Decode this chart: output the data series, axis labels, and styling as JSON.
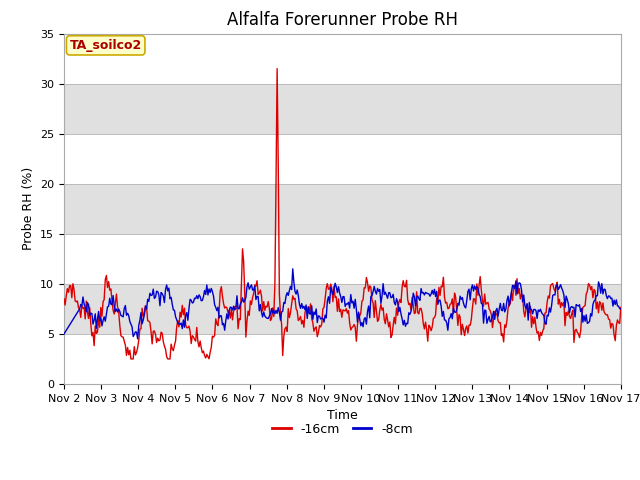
{
  "title": "Alfalfa Forerunner Probe RH",
  "ylabel": "Probe RH (%)",
  "xlabel": "Time",
  "ylim": [
    0,
    35
  ],
  "yticks": [
    0,
    5,
    10,
    15,
    20,
    25,
    30,
    35
  ],
  "xtick_labels": [
    "Nov 2",
    "Nov 3",
    "Nov 4",
    "Nov 5",
    "Nov 6",
    "Nov 7",
    "Nov 8",
    "Nov 9",
    "Nov 10",
    "Nov 11",
    "Nov 12",
    "Nov 13",
    "Nov 14",
    "Nov 15",
    "Nov 16",
    "Nov 17"
  ],
  "annotation_text": "TA_soilco2",
  "annotation_bg": "#ffffcc",
  "annotation_edge": "#ccaa00",
  "annotation_textcolor": "#aa0000",
  "line_red_color": "#dd0000",
  "line_blue_color": "#0000cc",
  "legend_labels": [
    "-16cm",
    "-8cm"
  ],
  "bg_band_color": "#e0e0e0",
  "grid_color": "#bbbbbb",
  "title_fontsize": 12,
  "label_fontsize": 9,
  "tick_fontsize": 8
}
